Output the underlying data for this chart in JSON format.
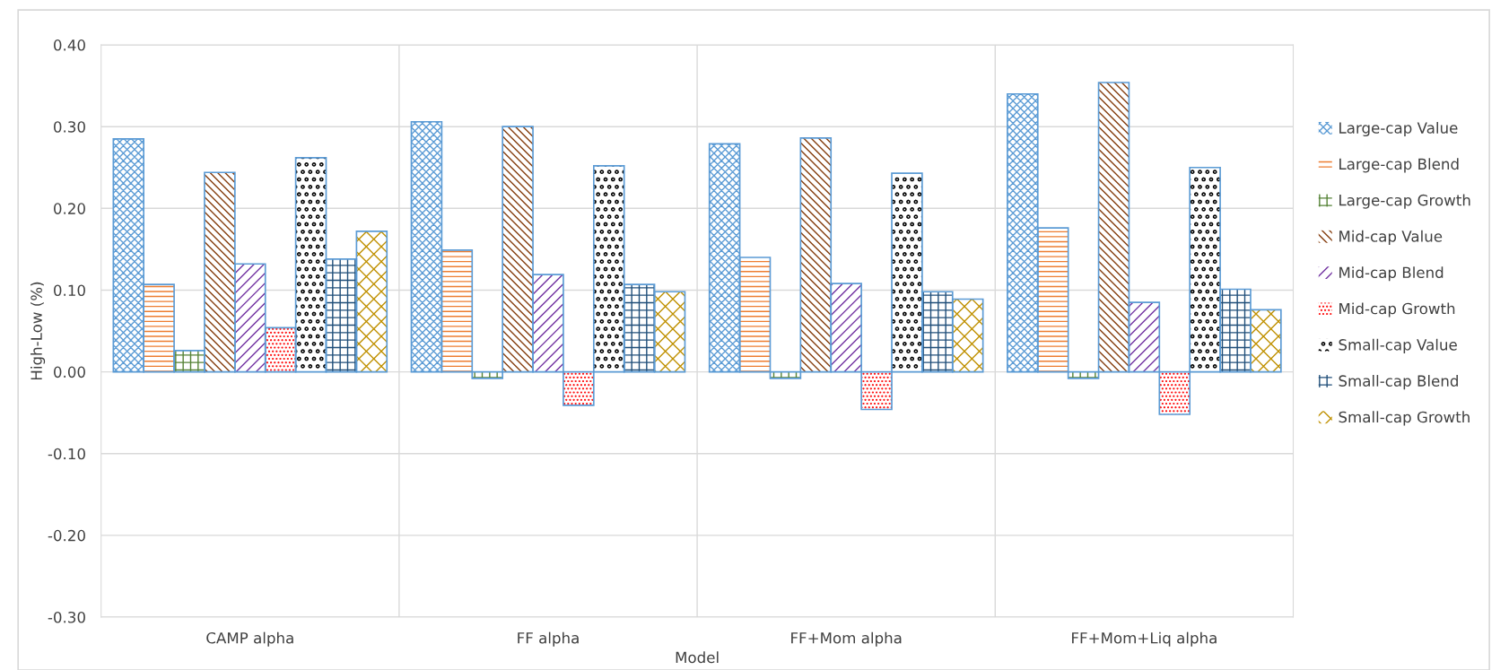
{
  "chart_data": {
    "type": "bar",
    "xlabel": "Model",
    "ylabel": "High-Low (%)",
    "categories": [
      "CAMP alpha",
      "FF alpha",
      "FF+Mom alpha",
      "FF+Mom+Liq alpha"
    ],
    "series": [
      {
        "name": "Large-cap Value",
        "color": "#5b9bd5",
        "values": [
          0.285,
          0.306,
          0.279,
          0.34
        ]
      },
      {
        "name": "Large-cap Blend",
        "color": "#ed7d31",
        "values": [
          0.107,
          0.149,
          0.14,
          0.176
        ]
      },
      {
        "name": "Large-cap Growth",
        "color": "#548235",
        "values": [
          0.026,
          -0.008,
          -0.008,
          -0.008
        ]
      },
      {
        "name": "Mid-cap Value",
        "color": "#843c0c",
        "values": [
          0.244,
          0.3,
          0.286,
          0.354
        ]
      },
      {
        "name": "Mid-cap Blend",
        "color": "#7030a0",
        "values": [
          0.132,
          0.119,
          0.108,
          0.085
        ]
      },
      {
        "name": "Mid-cap Growth",
        "color": "#ff0000",
        "values": [
          0.054,
          -0.041,
          -0.046,
          -0.052
        ]
      },
      {
        "name": "Small-cap Value",
        "color": "#000000",
        "values": [
          0.262,
          0.252,
          0.243,
          0.25
        ]
      },
      {
        "name": "Small-cap Blend",
        "color": "#1f4e79",
        "values": [
          0.138,
          0.107,
          0.098,
          0.101
        ]
      },
      {
        "name": "Small-cap Growth",
        "color": "#bf9000",
        "values": [
          0.172,
          0.098,
          0.089,
          0.076
        ]
      }
    ],
    "ylim": [
      -0.3,
      0.4
    ],
    "yticks": [
      {
        "value": -0.3,
        "label": "-0.30"
      },
      {
        "value": -0.2,
        "label": "-0.20"
      },
      {
        "value": -0.1,
        "label": "-0.10"
      },
      {
        "value": 0,
        "label": "0.00"
      },
      {
        "value": 0.1,
        "label": "0.10"
      },
      {
        "value": 0.2,
        "label": "0.20"
      },
      {
        "value": 0.3,
        "label": "0.30"
      },
      {
        "value": 0.4,
        "label": "0.40"
      }
    ],
    "grid": true,
    "legend": "right"
  }
}
